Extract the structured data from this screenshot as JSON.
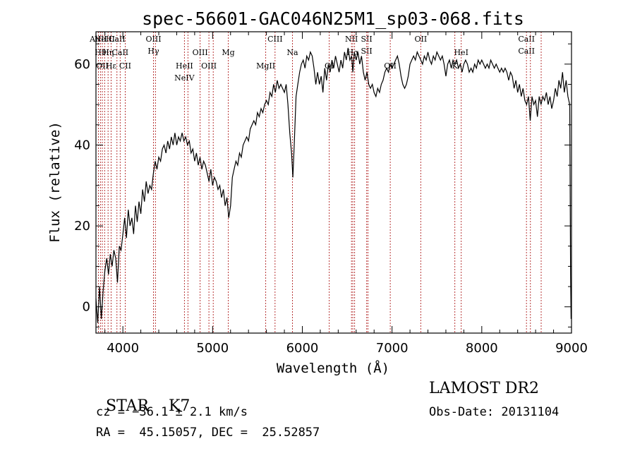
{
  "chart_data": {
    "type": "line",
    "title": "spec-56601-GAC046N25M1_sp03-068.fits",
    "xlabel": "Wavelength (Å)",
    "ylabel": "Flux (relative)",
    "xlim": [
      3700,
      9000
    ],
    "ylim": [
      -6.5,
      68
    ],
    "x_ticks": [
      "4000",
      "5000",
      "6000",
      "7000",
      "8000",
      "9000"
    ],
    "y_ticks": [
      "0",
      "20",
      "40",
      "60"
    ],
    "series": [
      {
        "points": [
          [
            3700,
            2
          ],
          [
            3720,
            -4
          ],
          [
            3740,
            5
          ],
          [
            3760,
            -3
          ],
          [
            3780,
            4
          ],
          [
            3800,
            9
          ],
          [
            3820,
            12
          ],
          [
            3840,
            8
          ],
          [
            3860,
            13
          ],
          [
            3880,
            10
          ],
          [
            3900,
            14
          ],
          [
            3920,
            12
          ],
          [
            3940,
            6
          ],
          [
            3960,
            15
          ],
          [
            3980,
            14
          ],
          [
            4000,
            18
          ],
          [
            4020,
            22
          ],
          [
            4040,
            17
          ],
          [
            4060,
            24
          ],
          [
            4080,
            20
          ],
          [
            4100,
            22
          ],
          [
            4120,
            18
          ],
          [
            4140,
            25
          ],
          [
            4160,
            21
          ],
          [
            4180,
            26
          ],
          [
            4200,
            23
          ],
          [
            4220,
            29
          ],
          [
            4240,
            26
          ],
          [
            4260,
            31
          ],
          [
            4280,
            28
          ],
          [
            4300,
            30
          ],
          [
            4320,
            29
          ],
          [
            4340,
            33
          ],
          [
            4360,
            36
          ],
          [
            4380,
            34
          ],
          [
            4400,
            37
          ],
          [
            4420,
            36
          ],
          [
            4440,
            39
          ],
          [
            4460,
            40
          ],
          [
            4480,
            38
          ],
          [
            4500,
            41
          ],
          [
            4520,
            39
          ],
          [
            4540,
            42
          ],
          [
            4560,
            40
          ],
          [
            4580,
            43
          ],
          [
            4600,
            40
          ],
          [
            4620,
            42
          ],
          [
            4640,
            41
          ],
          [
            4660,
            43
          ],
          [
            4680,
            41
          ],
          [
            4700,
            42
          ],
          [
            4720,
            40
          ],
          [
            4740,
            41
          ],
          [
            4760,
            38
          ],
          [
            4780,
            39
          ],
          [
            4800,
            36
          ],
          [
            4820,
            38
          ],
          [
            4840,
            35
          ],
          [
            4860,
            37
          ],
          [
            4880,
            34
          ],
          [
            4900,
            36
          ],
          [
            4920,
            35
          ],
          [
            4940,
            33
          ],
          [
            4960,
            31
          ],
          [
            4980,
            34
          ],
          [
            5000,
            30
          ],
          [
            5020,
            32
          ],
          [
            5040,
            31
          ],
          [
            5060,
            29
          ],
          [
            5080,
            30
          ],
          [
            5100,
            27
          ],
          [
            5120,
            29
          ],
          [
            5140,
            25
          ],
          [
            5160,
            27
          ],
          [
            5180,
            22
          ],
          [
            5200,
            25
          ],
          [
            5220,
            32
          ],
          [
            5240,
            34
          ],
          [
            5260,
            36
          ],
          [
            5280,
            35
          ],
          [
            5300,
            38
          ],
          [
            5320,
            37
          ],
          [
            5340,
            40
          ],
          [
            5360,
            41
          ],
          [
            5380,
            42
          ],
          [
            5400,
            41
          ],
          [
            5420,
            44
          ],
          [
            5440,
            45
          ],
          [
            5460,
            46
          ],
          [
            5480,
            45
          ],
          [
            5500,
            48
          ],
          [
            5520,
            47
          ],
          [
            5540,
            49
          ],
          [
            5560,
            48
          ],
          [
            5580,
            50
          ],
          [
            5600,
            51
          ],
          [
            5620,
            50
          ],
          [
            5640,
            53
          ],
          [
            5660,
            52
          ],
          [
            5680,
            55
          ],
          [
            5700,
            53
          ],
          [
            5720,
            56
          ],
          [
            5740,
            54
          ],
          [
            5760,
            55
          ],
          [
            5780,
            54
          ],
          [
            5800,
            53
          ],
          [
            5820,
            55
          ],
          [
            5840,
            50
          ],
          [
            5860,
            43
          ],
          [
            5880,
            38
          ],
          [
            5895,
            32
          ],
          [
            5910,
            40
          ],
          [
            5930,
            52
          ],
          [
            5950,
            55
          ],
          [
            5970,
            58
          ],
          [
            5990,
            60
          ],
          [
            6010,
            61
          ],
          [
            6030,
            59
          ],
          [
            6050,
            62
          ],
          [
            6070,
            61
          ],
          [
            6090,
            63
          ],
          [
            6110,
            62
          ],
          [
            6130,
            59
          ],
          [
            6150,
            55
          ],
          [
            6170,
            58
          ],
          [
            6190,
            55
          ],
          [
            6210,
            57
          ],
          [
            6230,
            53
          ],
          [
            6250,
            59
          ],
          [
            6270,
            56
          ],
          [
            6290,
            60
          ],
          [
            6310,
            58
          ],
          [
            6330,
            61
          ],
          [
            6350,
            59
          ],
          [
            6370,
            62
          ],
          [
            6390,
            60
          ],
          [
            6410,
            58
          ],
          [
            6430,
            61
          ],
          [
            6450,
            59
          ],
          [
            6470,
            63
          ],
          [
            6490,
            61
          ],
          [
            6510,
            64
          ],
          [
            6530,
            61
          ],
          [
            6550,
            62
          ],
          [
            6563,
            58
          ],
          [
            6580,
            63
          ],
          [
            6600,
            61
          ],
          [
            6620,
            63
          ],
          [
            6640,
            60
          ],
          [
            6660,
            62
          ],
          [
            6680,
            58
          ],
          [
            6700,
            56
          ],
          [
            6720,
            58
          ],
          [
            6740,
            55
          ],
          [
            6760,
            54
          ],
          [
            6780,
            55
          ],
          [
            6800,
            53
          ],
          [
            6820,
            52
          ],
          [
            6840,
            54
          ],
          [
            6860,
            53
          ],
          [
            6880,
            55
          ],
          [
            6900,
            56
          ],
          [
            6920,
            58
          ],
          [
            6940,
            59
          ],
          [
            6960,
            58
          ],
          [
            6980,
            60
          ],
          [
            7000,
            59
          ],
          [
            7020,
            60
          ],
          [
            7040,
            61
          ],
          [
            7060,
            62
          ],
          [
            7080,
            60
          ],
          [
            7100,
            57
          ],
          [
            7120,
            55
          ],
          [
            7140,
            54
          ],
          [
            7160,
            55
          ],
          [
            7180,
            57
          ],
          [
            7200,
            60
          ],
          [
            7220,
            61
          ],
          [
            7240,
            62
          ],
          [
            7260,
            61
          ],
          [
            7280,
            63
          ],
          [
            7300,
            62
          ],
          [
            7320,
            61
          ],
          [
            7340,
            60
          ],
          [
            7360,
            62
          ],
          [
            7380,
            61
          ],
          [
            7400,
            63
          ],
          [
            7420,
            61
          ],
          [
            7440,
            60
          ],
          [
            7460,
            62
          ],
          [
            7480,
            61
          ],
          [
            7500,
            63
          ],
          [
            7520,
            62
          ],
          [
            7540,
            61
          ],
          [
            7560,
            62
          ],
          [
            7580,
            60
          ],
          [
            7600,
            57
          ],
          [
            7620,
            60
          ],
          [
            7640,
            61
          ],
          [
            7660,
            59
          ],
          [
            7680,
            61
          ],
          [
            7700,
            60
          ],
          [
            7720,
            61
          ],
          [
            7740,
            59
          ],
          [
            7760,
            60
          ],
          [
            7780,
            58
          ],
          [
            7800,
            60
          ],
          [
            7820,
            61
          ],
          [
            7840,
            60
          ],
          [
            7860,
            58
          ],
          [
            7880,
            59
          ],
          [
            7900,
            58
          ],
          [
            7920,
            60
          ],
          [
            7940,
            59
          ],
          [
            7960,
            61
          ],
          [
            7980,
            60
          ],
          [
            8000,
            61
          ],
          [
            8020,
            60
          ],
          [
            8040,
            59
          ],
          [
            8060,
            60
          ],
          [
            8080,
            59
          ],
          [
            8100,
            61
          ],
          [
            8120,
            60
          ],
          [
            8140,
            59
          ],
          [
            8160,
            60
          ],
          [
            8180,
            59
          ],
          [
            8200,
            58
          ],
          [
            8220,
            59
          ],
          [
            8240,
            58
          ],
          [
            8260,
            59
          ],
          [
            8280,
            58
          ],
          [
            8300,
            56
          ],
          [
            8320,
            58
          ],
          [
            8340,
            57
          ],
          [
            8360,
            54
          ],
          [
            8380,
            56
          ],
          [
            8400,
            53
          ],
          [
            8420,
            55
          ],
          [
            8440,
            52
          ],
          [
            8460,
            54
          ],
          [
            8480,
            51
          ],
          [
            8500,
            50
          ],
          [
            8520,
            52
          ],
          [
            8540,
            46
          ],
          [
            8560,
            52
          ],
          [
            8580,
            50
          ],
          [
            8600,
            51
          ],
          [
            8620,
            47
          ],
          [
            8640,
            52
          ],
          [
            8660,
            50
          ],
          [
            8680,
            52
          ],
          [
            8700,
            51
          ],
          [
            8720,
            53
          ],
          [
            8740,
            50
          ],
          [
            8760,
            52
          ],
          [
            8780,
            49
          ],
          [
            8800,
            51
          ],
          [
            8820,
            54
          ],
          [
            8840,
            52
          ],
          [
            8860,
            56
          ],
          [
            8880,
            54
          ],
          [
            8900,
            58
          ],
          [
            8920,
            53
          ],
          [
            8940,
            56
          ],
          [
            8960,
            52
          ],
          [
            8980,
            50
          ],
          [
            8990,
            8
          ],
          [
            8995,
            -3
          ]
        ]
      }
    ],
    "line_markers": [
      {
        "x": 3727,
        "labels": [
          "AlIII"
        ]
      },
      {
        "x": 3750,
        "labels": [
          "Hθ"
        ]
      },
      {
        "x": 3771,
        "labels": [
          "OII"
        ]
      },
      {
        "x": 3797,
        "labels": [
          "NeIII"
        ]
      },
      {
        "x": 3835,
        "labels": [
          "Hη"
        ]
      },
      {
        "x": 3869,
        "labels": [
          "Hε"
        ]
      },
      {
        "x": 3934,
        "labels": [
          "CaII"
        ]
      },
      {
        "x": 3970,
        "labels": [
          "CaII"
        ]
      },
      {
        "x": 4026,
        "labels": [
          "CII"
        ]
      },
      {
        "x": 4341,
        "labels": [
          "OIII",
          "Hγ"
        ]
      },
      {
        "x": 4363,
        "labels": []
      },
      {
        "x": 4686,
        "labels": [
          "HeII",
          "NeIV"
        ]
      },
      {
        "x": 4725,
        "labels": []
      },
      {
        "x": 4861,
        "labels": [
          "OIII"
        ]
      },
      {
        "x": 4959,
        "labels": [
          "OIII"
        ]
      },
      {
        "x": 5007,
        "labels": []
      },
      {
        "x": 5175,
        "labels": [
          "Mg"
        ]
      },
      {
        "x": 5592,
        "labels": [
          "MgII"
        ]
      },
      {
        "x": 5696,
        "labels": [
          "CIII"
        ]
      },
      {
        "x": 5890,
        "labels": [
          "Na"
        ]
      },
      {
        "x": 6300,
        "labels": [
          "OI"
        ]
      },
      {
        "x": 6548,
        "labels": [
          "NII"
        ]
      },
      {
        "x": 6563,
        "labels": [
          "Hα"
        ]
      },
      {
        "x": 6583,
        "labels": []
      },
      {
        "x": 6717,
        "labels": [
          "SII",
          "SII"
        ]
      },
      {
        "x": 6731,
        "labels": []
      },
      {
        "x": 6980,
        "labels": [
          "OII"
        ]
      },
      {
        "x": 7320,
        "labels": [
          "OII"
        ]
      },
      {
        "x": 7771,
        "labels": [
          "HeI"
        ]
      },
      {
        "x": 7700,
        "labels": [
          "K"
        ]
      },
      {
        "x": 8498,
        "labels": [
          "CaII",
          "CaII"
        ]
      },
      {
        "x": 8542,
        "labels": []
      },
      {
        "x": 8662,
        "labels": []
      }
    ]
  },
  "info": {
    "class_label": "STAR",
    "subclass_label": "K7",
    "cz_line": "cz = −36.1 ± 2.1 km/s",
    "radec_line": "RA =  45.15057, DEC =  25.52857",
    "survey": "LAMOST DR2",
    "obs_date": "Obs-Date: 20131104"
  }
}
